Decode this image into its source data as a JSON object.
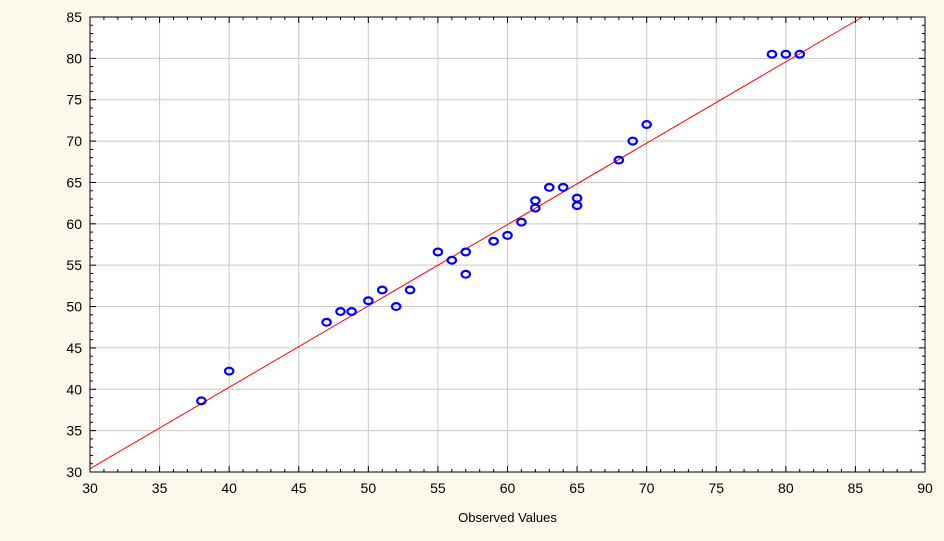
{
  "chart_data": {
    "type": "scatter",
    "title": "",
    "xlabel": "Observed Values",
    "ylabel": "",
    "xlim": [
      30,
      90
    ],
    "ylim": [
      30,
      85
    ],
    "xticks": [
      30,
      35,
      40,
      45,
      50,
      55,
      60,
      65,
      70,
      75,
      80,
      85,
      90
    ],
    "yticks": [
      30,
      35,
      40,
      45,
      50,
      55,
      60,
      65,
      70,
      75,
      80,
      85
    ],
    "grid": true,
    "legend": "none",
    "points": [
      {
        "x": 38,
        "y": 38.6
      },
      {
        "x": 40,
        "y": 42.2
      },
      {
        "x": 47,
        "y": 48.1
      },
      {
        "x": 48,
        "y": 49.4
      },
      {
        "x": 48.8,
        "y": 49.4
      },
      {
        "x": 50,
        "y": 50.7
      },
      {
        "x": 51,
        "y": 52.0
      },
      {
        "x": 52,
        "y": 50.0
      },
      {
        "x": 53,
        "y": 52.0
      },
      {
        "x": 55,
        "y": 56.6
      },
      {
        "x": 56,
        "y": 55.6
      },
      {
        "x": 57,
        "y": 56.6
      },
      {
        "x": 57,
        "y": 53.9
      },
      {
        "x": 59,
        "y": 57.9
      },
      {
        "x": 60,
        "y": 58.6
      },
      {
        "x": 61,
        "y": 60.2
      },
      {
        "x": 62,
        "y": 62.8
      },
      {
        "x": 62,
        "y": 61.9
      },
      {
        "x": 63,
        "y": 64.4
      },
      {
        "x": 64,
        "y": 64.4
      },
      {
        "x": 65,
        "y": 63.1
      },
      {
        "x": 65,
        "y": 62.2
      },
      {
        "x": 68,
        "y": 67.7
      },
      {
        "x": 69,
        "y": 70.0
      },
      {
        "x": 70,
        "y": 72.0
      },
      {
        "x": 79,
        "y": 80.5
      },
      {
        "x": 80,
        "y": 80.5
      },
      {
        "x": 81,
        "y": 80.5
      }
    ],
    "fit_line": {
      "x1": 30,
      "y1": 30.4,
      "x2": 85.5,
      "y2": 85
    },
    "colors": {
      "background": "#fdf8ec",
      "plot_background": "#ffffff",
      "point": "#0000ff",
      "fit_line": "#ff0000",
      "grid": "#c8c8c8",
      "axis": "#000000"
    }
  }
}
